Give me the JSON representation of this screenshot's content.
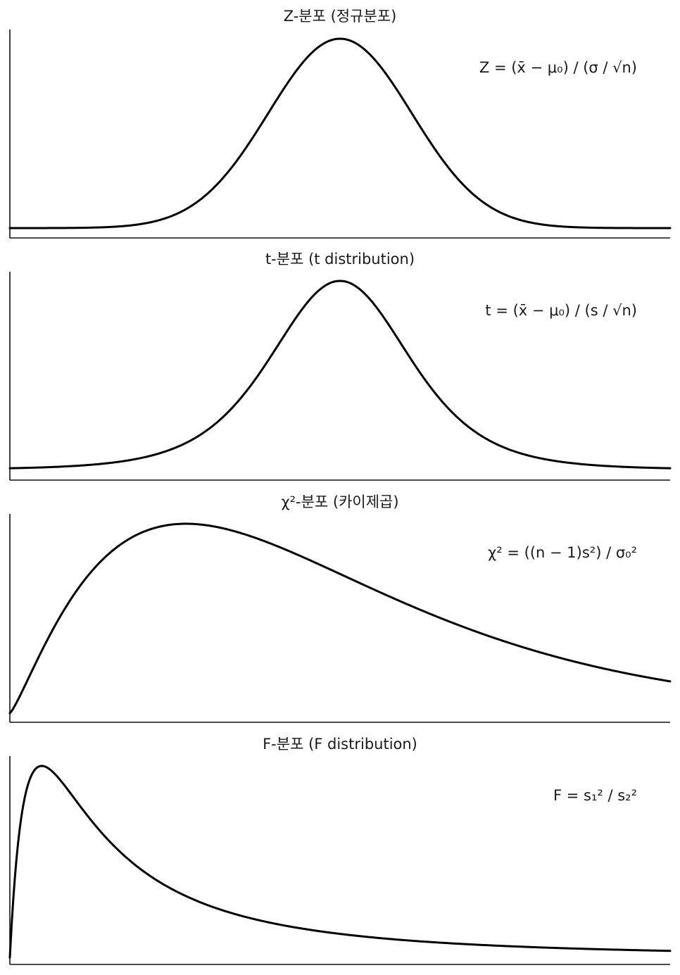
{
  "chart_data": [
    {
      "type": "line",
      "title": "Z-분포 (정규분포)",
      "annotation": "Z = (x̄ − μ₀) / (σ / √n)",
      "distribution": "normal",
      "x_range": [
        -4.6,
        4.6
      ],
      "grid": false,
      "curve_color": "#000000"
    },
    {
      "type": "line",
      "title": "t-분포 (t distribution)",
      "annotation": "t = (x̄ − μ₀) / (s / √n)",
      "distribution": "student_t",
      "x_range": [
        -4.6,
        4.6
      ],
      "grid": false,
      "curve_color": "#000000"
    },
    {
      "type": "line",
      "title": "χ²-분포 (카이제곱)",
      "annotation": "χ² = ((n − 1)s²) / σ₀²",
      "distribution": "chi_square",
      "x_range": [
        0,
        15
      ],
      "grid": false,
      "curve_color": "#000000"
    },
    {
      "type": "line",
      "title": "F-분포 (F distribution)",
      "annotation": "F = s₁² / s₂²",
      "distribution": "f",
      "x_range": [
        0,
        6
      ],
      "grid": false,
      "curve_color": "#000000"
    }
  ]
}
